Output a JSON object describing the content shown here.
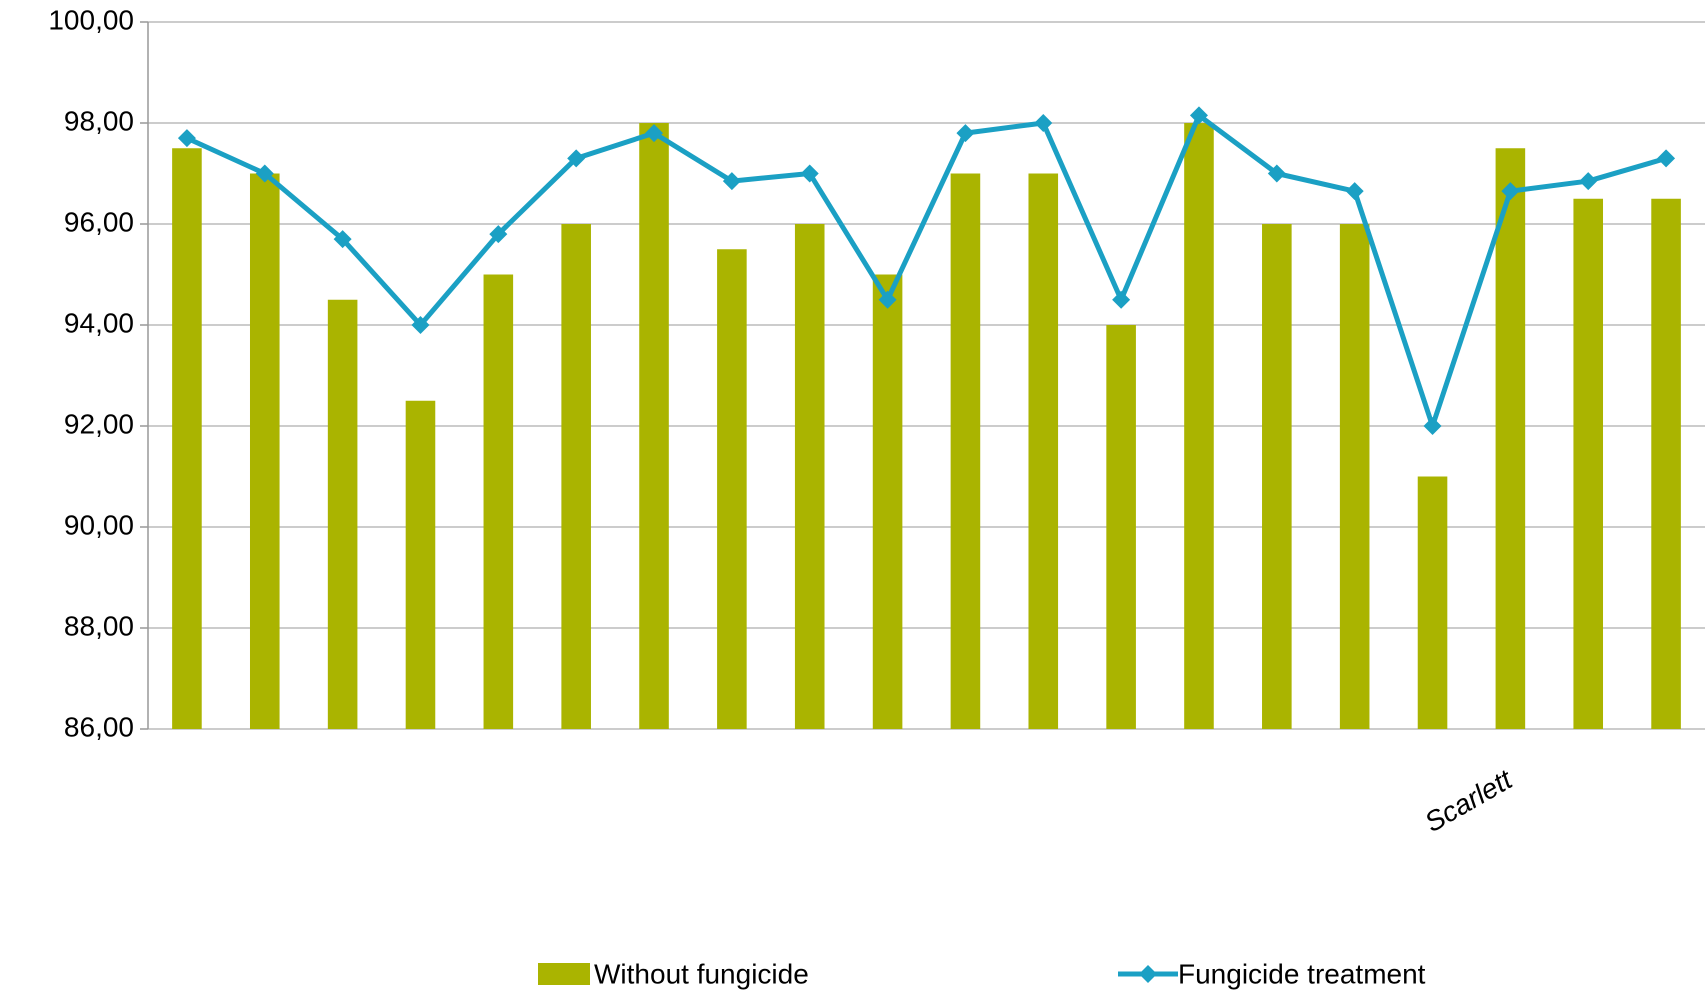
{
  "chart_data": {
    "type": "bar-line",
    "categories": [
      null,
      null,
      null,
      null,
      null,
      null,
      null,
      null,
      null,
      null,
      null,
      null,
      null,
      null,
      null,
      null,
      null,
      "Scarlett",
      null,
      null
    ],
    "series": [
      {
        "name": "Without fungicide",
        "type": "bar",
        "color": "#aab400",
        "values": [
          97.5,
          97,
          94.5,
          92.5,
          95,
          96,
          98,
          95.5,
          96,
          95,
          97,
          97,
          94,
          98,
          96,
          96,
          91,
          97.5,
          96.5,
          96.5
        ]
      },
      {
        "name": "Fungicide treatment",
        "type": "line",
        "color": "#1ba0c4",
        "values": [
          97.7,
          97.0,
          95.7,
          94.0,
          95.8,
          97.3,
          97.8,
          96.85,
          97.0,
          94.5,
          97.8,
          98.0,
          94.5,
          98.15,
          97.0,
          96.65,
          92.0,
          96.65,
          96.85,
          97.3
        ]
      }
    ],
    "ylim": [
      86,
      100
    ],
    "yticks": [
      {
        "value": 86,
        "label": "86,00"
      },
      {
        "value": 88,
        "label": "88,00"
      },
      {
        "value": 90,
        "label": "90,00"
      },
      {
        "value": 92,
        "label": "92,00"
      },
      {
        "value": 94,
        "label": "94,00"
      },
      {
        "value": 96,
        "label": "96,00"
      },
      {
        "value": 98,
        "label": "98,00"
      },
      {
        "value": 100,
        "label": "100,00"
      }
    ],
    "grid": true,
    "legend": "bottom"
  }
}
